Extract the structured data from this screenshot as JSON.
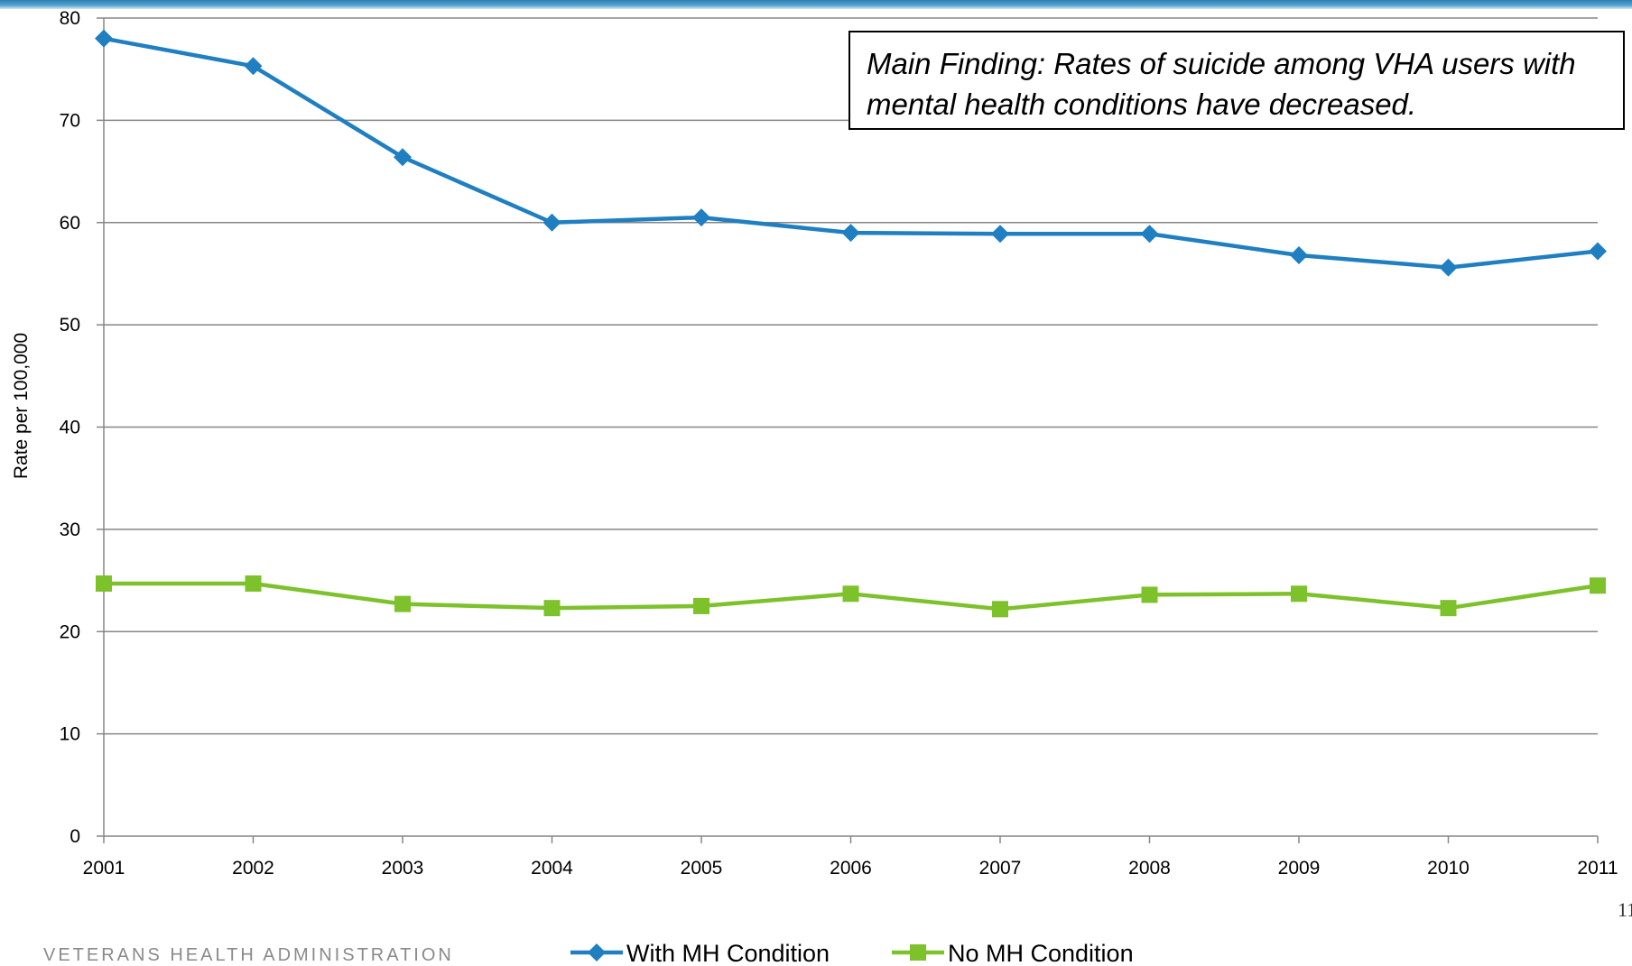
{
  "chart_data": {
    "type": "line",
    "title": "",
    "xlabel": "",
    "ylabel": "Rate per 100,000",
    "categories": [
      "2001",
      "2002",
      "2003",
      "2004",
      "2005",
      "2006",
      "2007",
      "2008",
      "2009",
      "2010",
      "2011"
    ],
    "ylim": [
      0,
      80
    ],
    "yticks": [
      0,
      10,
      20,
      30,
      40,
      50,
      60,
      70,
      80
    ],
    "grid": true,
    "legend_position": "bottom",
    "series": [
      {
        "name": "With MH Condition",
        "color": "#1f7fc1",
        "marker": "diamond",
        "values": [
          78.0,
          75.3,
          66.4,
          60.0,
          60.5,
          59.0,
          58.9,
          58.9,
          56.8,
          55.6,
          57.2
        ]
      },
      {
        "name": "No MH Condition",
        "color": "#7dc12b",
        "marker": "square",
        "values": [
          24.7,
          24.7,
          22.7,
          22.3,
          22.5,
          23.7,
          22.2,
          23.6,
          23.7,
          22.3,
          24.5
        ]
      }
    ],
    "annotation": "Main Finding: Rates of suicide among VHA users with mental health conditions have decreased."
  },
  "footer": {
    "organization": "VETERANS HEALTH ADMINISTRATION",
    "page_number": "11"
  },
  "colors": {
    "band": "#2b7fb4",
    "grid": "#868686"
  }
}
